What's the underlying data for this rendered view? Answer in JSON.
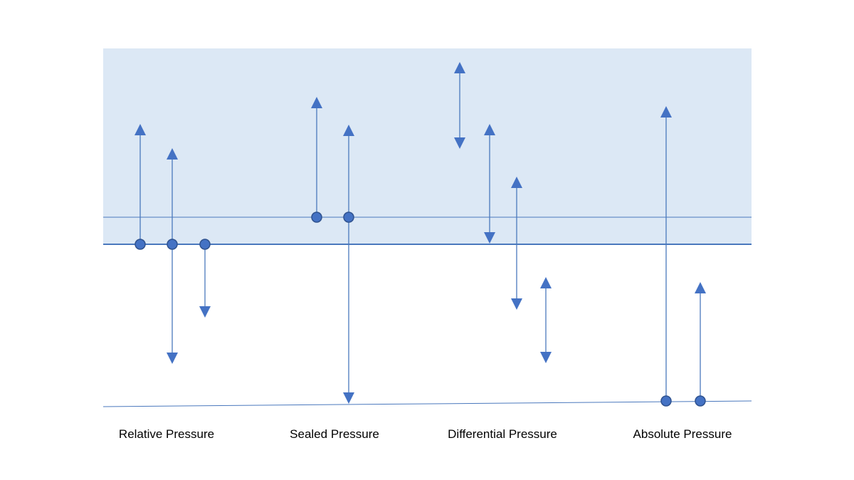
{
  "colors": {
    "shaded_region": "#dce8f5",
    "line": "#4a78bd",
    "marker_fill": "#4472c4",
    "marker_stroke": "#2f528f"
  },
  "labels": {
    "relative": "Relative Pressure",
    "sealed": "Sealed Pressure",
    "differential": "Differential Pressure",
    "absolute": "Absolute Pressure"
  }
}
